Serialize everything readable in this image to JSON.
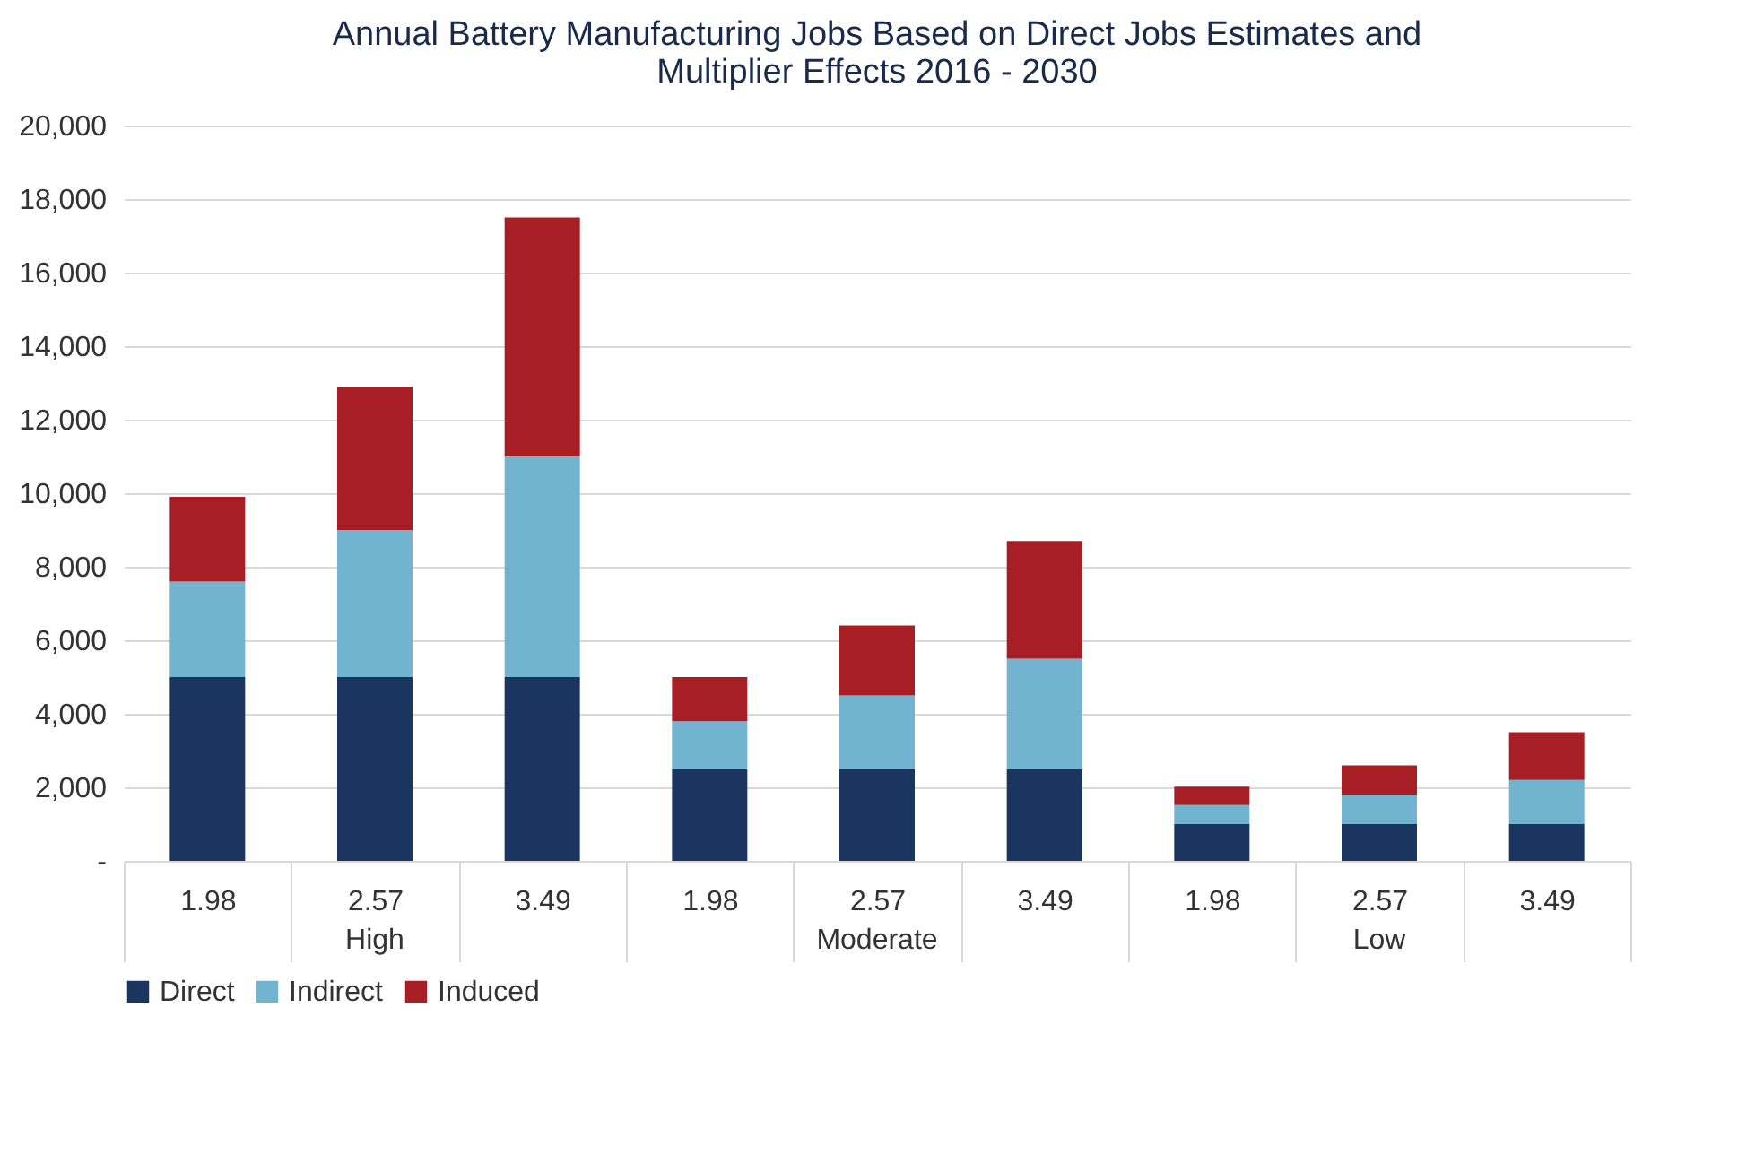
{
  "chart_data": {
    "type": "bar",
    "title": "Annual Battery Manufacturing Jobs Based on Direct Jobs Estimates and\nMultiplier Effects 2016 - 2030",
    "stacked": true,
    "categories": [
      "1.98",
      "2.57",
      "3.49",
      "1.98",
      "2.57",
      "3.49",
      "1.98",
      "2.57",
      "3.49"
    ],
    "annotations": [
      "High",
      "Moderate",
      "Low"
    ],
    "series": [
      {
        "name": "Direct",
        "color": "#1a3660",
        "values": [
          5000,
          5000,
          5000,
          2500,
          2500,
          2500,
          1000,
          1000,
          1000
        ]
      },
      {
        "name": "Indirect",
        "color": "#72b3cf",
        "values": [
          2600,
          4000,
          6000,
          1300,
          2000,
          3000,
          520,
          800,
          1200
        ]
      },
      {
        "name": "Induced",
        "color": "#a71f24",
        "values": [
          2300,
          3900,
          6500,
          1200,
          1900,
          3200,
          500,
          800,
          1300
        ]
      }
    ],
    "ylim": [
      0,
      20000
    ],
    "yticks": [
      {
        "value": 0,
        "label": "-"
      },
      {
        "value": 2000,
        "label": "2,000"
      },
      {
        "value": 4000,
        "label": "4,000"
      },
      {
        "value": 6000,
        "label": "6,000"
      },
      {
        "value": 8000,
        "label": "8,000"
      },
      {
        "value": 10000,
        "label": "10,000"
      },
      {
        "value": 12000,
        "label": "12,000"
      },
      {
        "value": 14000,
        "label": "14,000"
      },
      {
        "value": 16000,
        "label": "16,000"
      },
      {
        "value": 18000,
        "label": "18,000"
      },
      {
        "value": 20000,
        "label": "20,000"
      }
    ],
    "grid": "y",
    "legend": "bottom"
  }
}
